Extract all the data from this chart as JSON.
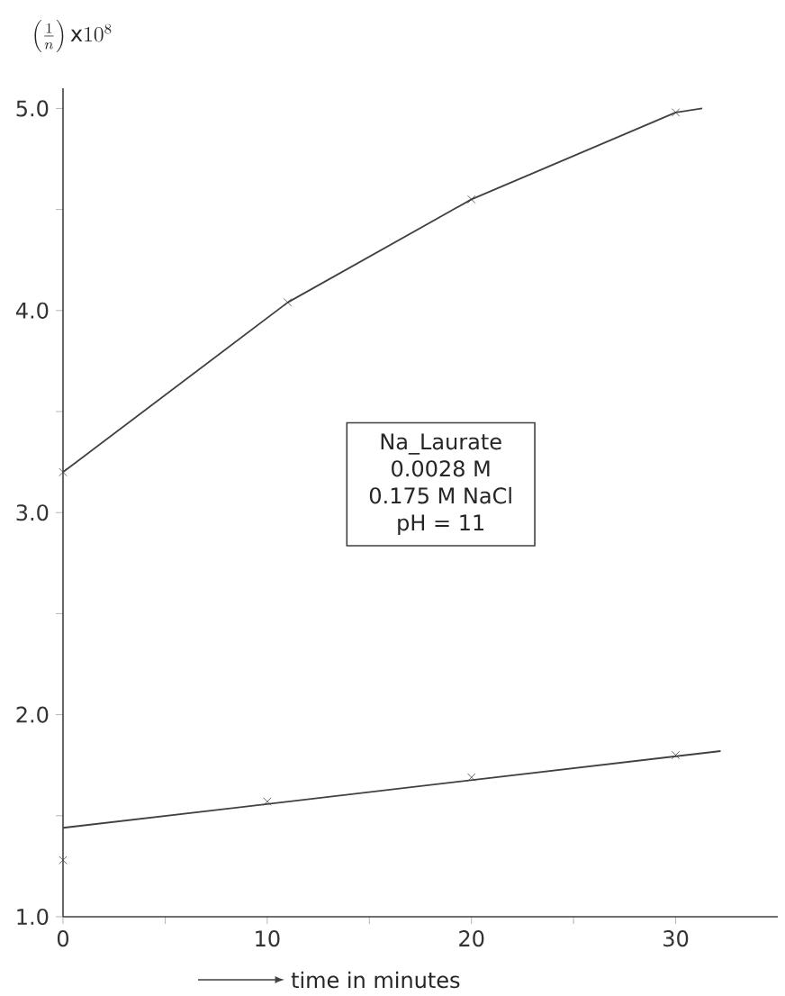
{
  "chart_data": {
    "type": "line",
    "ylabel": "\\left(\\frac{1}{n}\\right)\\mathrm{x}10^{8}",
    "xlabel": "time in minutes",
    "annotations": [
      "Na_Laurate",
      "0.0028 M",
      "0.175 M NaCl",
      "pH = 11"
    ],
    "series": [
      {
        "color": "#404040",
        "marker": "none",
        "x": [
          0,
          11,
          20,
          30,
          31.3
        ],
        "values": [
          3.2,
          4.04,
          4.55,
          4.98,
          5.0
        ]
      },
      {
        "type": "scatter",
        "marker": "cross",
        "color": "#404040",
        "x": [
          0,
          11,
          20,
          30
        ],
        "values": [
          3.2,
          4.04,
          4.55,
          4.98
        ]
      },
      {
        "color": "#404040",
        "marker": "none",
        "x": [
          0,
          32.2
        ],
        "values": [
          1.44,
          1.82
        ]
      },
      {
        "type": "scatter",
        "marker": "cross",
        "color": "#404040",
        "x": [
          0,
          10,
          20,
          30
        ],
        "values": [
          1.28,
          1.57,
          1.69,
          1.8
        ]
      }
    ],
    "line_style": "solid",
    "xlim": [
      0,
      35
    ],
    "ylim": [
      1,
      5.1
    ],
    "xticks": [
      0,
      10,
      20,
      30,
      {
        "value": 5,
        "label": null
      },
      {
        "value": 15,
        "label": null
      },
      {
        "value": 25,
        "label": null
      }
    ],
    "yticks": [
      {
        "value": 1,
        "label": "1.0"
      },
      {
        "value": 2,
        "label": "2.0"
      },
      {
        "value": 3,
        "label": "3.0"
      },
      {
        "value": 4,
        "label": "4.0"
      },
      {
        "value": 5,
        "label": "5.0"
      },
      {
        "value": 1.5,
        "label": null
      },
      {
        "value": 2.5,
        "label": null
      },
      {
        "value": 3.5,
        "label": null
      },
      {
        "value": 4.5,
        "label": null
      }
    ],
    "grid": false
  }
}
